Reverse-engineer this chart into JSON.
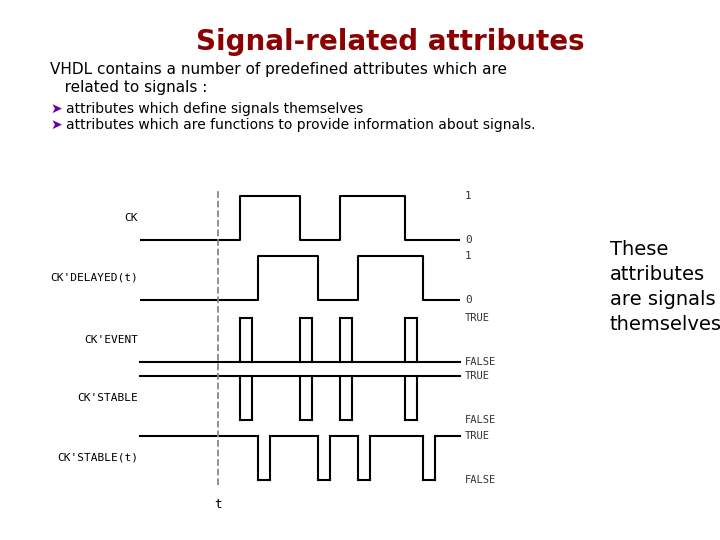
{
  "title": "Signal-related attributes",
  "title_color": "#8B0000",
  "title_fontsize": 20,
  "subtitle_line1": "VHDL contains a number of predefined attributes which are",
  "subtitle_line2": "   related to signals :",
  "bullet1": "  attributes which define signals themselves",
  "bullet2": "  attributes which are functions to provide information about signals.",
  "bullet_color": "#6600AA",
  "bullet_marker": "➤",
  "note_text": "These\nattributes\nare signals\nthemselves",
  "note_fontsize": 14,
  "bg_color": "#FFFFFF",
  "signal_labels": [
    "CK",
    "CK'DELAYED(t)",
    "CK'EVENT",
    "CK'STABLE",
    "CK'STABLE(t)"
  ],
  "diagram_line_color": "#000000",
  "dashed_line_color": "#888888",
  "value_label_color": "#333333",
  "text_font": "sans-serif",
  "mono_font": "monospace"
}
